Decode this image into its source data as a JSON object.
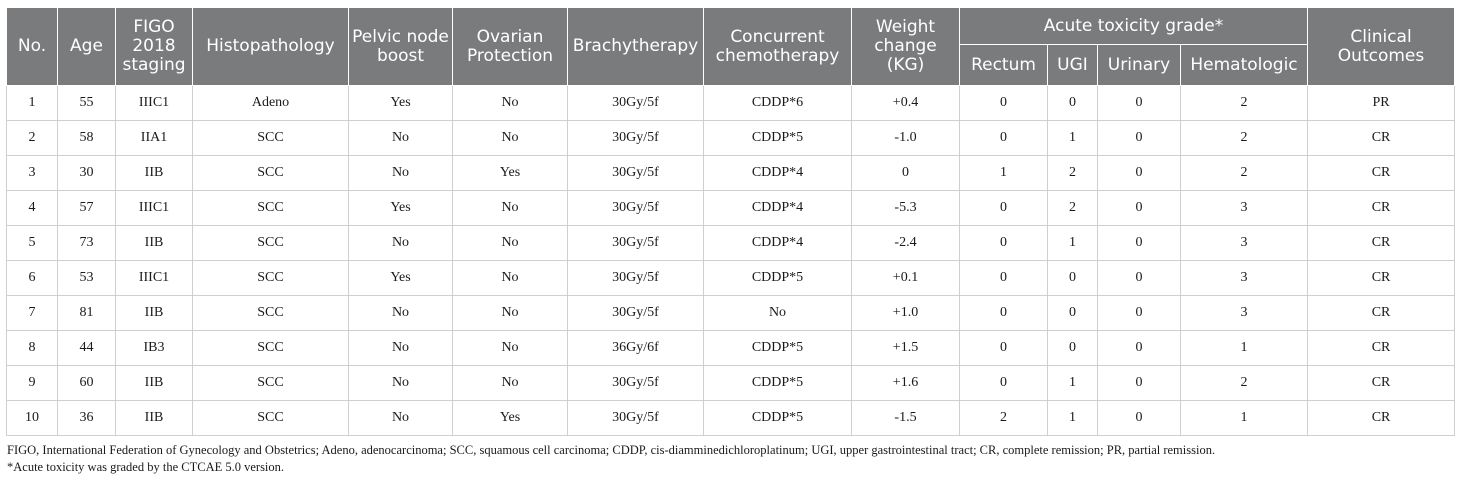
{
  "header": {
    "no": "No.",
    "age": "Age",
    "figo": "FIGO 2018 staging",
    "histopathology": "Histopathology",
    "pelvic": "Pelvic node boost",
    "ovarian": "Ovarian Protection",
    "brachy": "Brachytherapy",
    "chemo": "Concurrent chemotherapy",
    "weight": "Weight change (KG)",
    "acute": "Acute toxicity grade*",
    "rectum": "Rectum",
    "ugi": "UGI",
    "urinary": "Urinary",
    "hematologic": "Hematologic",
    "outcomes": "Clinical Outcomes"
  },
  "rows": [
    [
      "1",
      "55",
      "IIIC1",
      "Adeno",
      "Yes",
      "No",
      "30Gy/5f",
      "CDDP*6",
      "+0.4",
      "0",
      "0",
      "0",
      "2",
      "PR"
    ],
    [
      "2",
      "58",
      "IIA1",
      "SCC",
      "No",
      "No",
      "30Gy/5f",
      "CDDP*5",
      "-1.0",
      "0",
      "1",
      "0",
      "2",
      "CR"
    ],
    [
      "3",
      "30",
      "IIB",
      "SCC",
      "No",
      "Yes",
      "30Gy/5f",
      "CDDP*4",
      "0",
      "1",
      "2",
      "0",
      "2",
      "CR"
    ],
    [
      "4",
      "57",
      "IIIC1",
      "SCC",
      "Yes",
      "No",
      "30Gy/5f",
      "CDDP*4",
      "-5.3",
      "0",
      "2",
      "0",
      "3",
      "CR"
    ],
    [
      "5",
      "73",
      "IIB",
      "SCC",
      "No",
      "No",
      "30Gy/5f",
      "CDDP*4",
      "-2.4",
      "0",
      "1",
      "0",
      "3",
      "CR"
    ],
    [
      "6",
      "53",
      "IIIC1",
      "SCC",
      "Yes",
      "No",
      "30Gy/5f",
      "CDDP*5",
      "+0.1",
      "0",
      "0",
      "0",
      "3",
      "CR"
    ],
    [
      "7",
      "81",
      "IIB",
      "SCC",
      "No",
      "No",
      "30Gy/5f",
      "No",
      "+1.0",
      "0",
      "0",
      "0",
      "3",
      "CR"
    ],
    [
      "8",
      "44",
      "IB3",
      "SCC",
      "No",
      "No",
      "36Gy/6f",
      "CDDP*5",
      "+1.5",
      "0",
      "0",
      "0",
      "1",
      "CR"
    ],
    [
      "9",
      "60",
      "IIB",
      "SCC",
      "No",
      "No",
      "30Gy/5f",
      "CDDP*5",
      "+1.6",
      "0",
      "1",
      "0",
      "2",
      "CR"
    ],
    [
      "10",
      "36",
      "IIB",
      "SCC",
      "No",
      "Yes",
      "30Gy/5f",
      "CDDP*5",
      "-1.5",
      "2",
      "1",
      "0",
      "1",
      "CR"
    ]
  ],
  "footnotes": {
    "abbreviations": "FIGO, International Federation of Gynecology and Obstetrics; Adeno, adenocarcinoma; SCC, squamous cell carcinoma; CDDP, cis-diamminedichloroplatinum; UGI, upper gastrointestinal tract; CR, complete remission; PR, partial remission.",
    "toxicity": "*Acute toxicity was graded by the CTCAE 5.0 version."
  }
}
